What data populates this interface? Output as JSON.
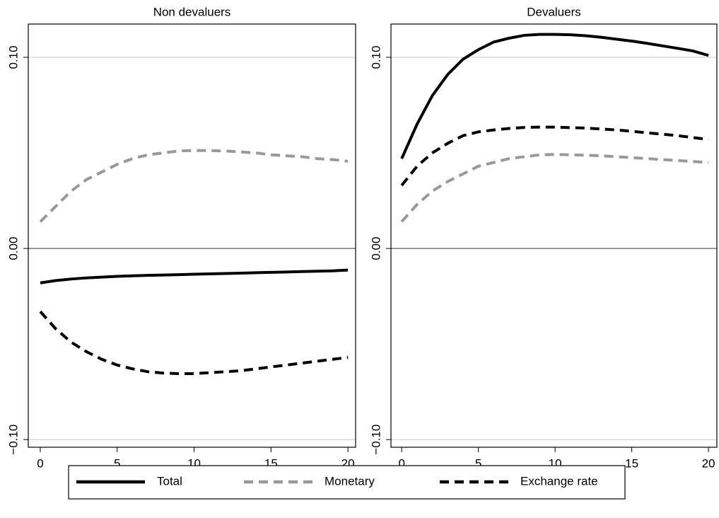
{
  "chart_data": [
    {
      "type": "line",
      "title": "Non devaluers",
      "x": [
        0,
        1,
        2,
        3,
        4,
        5,
        6,
        7,
        8,
        9,
        10,
        11,
        12,
        13,
        14,
        15,
        16,
        17,
        18,
        19,
        20
      ],
      "series": [
        {
          "name": "Total",
          "color": "#000000",
          "line_style": "solid",
          "values": [
            -0.018,
            -0.0168,
            -0.016,
            -0.0154,
            -0.015,
            -0.0146,
            -0.0143,
            -0.0141,
            -0.0139,
            -0.0137,
            -0.0135,
            -0.0133,
            -0.0131,
            -0.0129,
            -0.0127,
            -0.0125,
            -0.0123,
            -0.0121,
            -0.0119,
            -0.0117,
            -0.0113
          ]
        },
        {
          "name": "Monetary",
          "color": "#999999",
          "line_style": "dashed",
          "values": [
            0.014,
            0.022,
            0.03,
            0.036,
            0.04,
            0.044,
            0.047,
            0.049,
            0.05,
            0.051,
            0.0513,
            0.0512,
            0.051,
            0.0505,
            0.05,
            0.049,
            0.0485,
            0.048,
            0.047,
            0.0465,
            0.0456
          ]
        },
        {
          "name": "Exchange rate",
          "color": "#000000",
          "line_style": "dashed",
          "values": [
            -0.033,
            -0.042,
            -0.049,
            -0.054,
            -0.058,
            -0.061,
            -0.063,
            -0.0645,
            -0.0652,
            -0.0655,
            -0.0655,
            -0.065,
            -0.0645,
            -0.064,
            -0.063,
            -0.062,
            -0.061,
            -0.06,
            -0.059,
            -0.058,
            -0.057
          ]
        }
      ],
      "xlim": [
        -0.78,
        20.5
      ],
      "ylim": [
        -0.104,
        0.1174
      ],
      "xticks": [
        0,
        5,
        10,
        15,
        20
      ],
      "yticks": [
        {
          "value": -0.1,
          "label": "−0.10"
        },
        {
          "value": 0,
          "label": "0.00"
        },
        {
          "value": 0.1,
          "label": "0.10"
        }
      ],
      "grid": true,
      "legend": "bottom"
    },
    {
      "type": "line",
      "title": "Devaluers",
      "x": [
        0,
        1,
        2,
        3,
        4,
        5,
        6,
        7,
        8,
        9,
        10,
        11,
        12,
        13,
        14,
        15,
        16,
        17,
        18,
        19,
        20
      ],
      "series": [
        {
          "color": "#000000",
          "line_style": "solid",
          "values": [
            0.047,
            0.065,
            0.08,
            0.091,
            0.099,
            0.104,
            0.108,
            0.11,
            0.1115,
            0.112,
            0.112,
            0.1118,
            0.1113,
            0.1105,
            0.1095,
            0.1085,
            0.1073,
            0.106,
            0.1047,
            0.1033,
            0.101
          ]
        },
        {
          "color": "#999999",
          "line_style": "dashed",
          "values": [
            0.014,
            0.023,
            0.03,
            0.035,
            0.039,
            0.043,
            0.045,
            0.047,
            0.048,
            0.049,
            0.0492,
            0.049,
            0.0488,
            0.0485,
            0.048,
            0.0475,
            0.047,
            0.0465,
            0.046,
            0.0455,
            0.045
          ]
        },
        {
          "color": "#000000",
          "line_style": "dashed",
          "values": [
            0.033,
            0.043,
            0.05,
            0.055,
            0.059,
            0.061,
            0.062,
            0.0628,
            0.0633,
            0.0635,
            0.0635,
            0.0632,
            0.063,
            0.0625,
            0.062,
            0.0613,
            0.0605,
            0.0598,
            0.059,
            0.058,
            0.057
          ]
        }
      ],
      "xlim": [
        -0.7,
        20.55
      ],
      "ylim": [
        -0.104,
        0.1174
      ],
      "xticks": [
        0,
        5,
        10,
        15,
        20
      ],
      "yticks": [
        {
          "value": -0.1,
          "label": "−0.10"
        },
        {
          "value": 0,
          "label": "0.00"
        },
        {
          "value": 0.1,
          "label": "0.10"
        }
      ],
      "grid": true
    }
  ]
}
